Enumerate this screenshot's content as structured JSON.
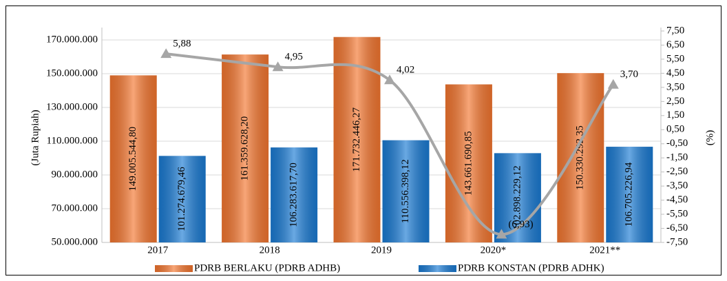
{
  "chart_data": {
    "type": "bar",
    "categories": [
      "2017",
      "2018",
      "2019",
      "2020*",
      "2021**"
    ],
    "ylabel": "(Juta Rupiah)",
    "y2label": "(%)",
    "ylim": [
      50000000,
      175300000
    ],
    "yticks": [
      {
        "value": 50000000,
        "label": "50.000.000"
      },
      {
        "value": 70000000,
        "label": "70.000.000"
      },
      {
        "value": 90000000,
        "label": "90.000.000"
      },
      {
        "value": 110000000,
        "label": "110.000.000"
      },
      {
        "value": 130000000,
        "label": "130.000.000"
      },
      {
        "value": 150000000,
        "label": "150.000.000"
      },
      {
        "value": 170000000,
        "label": "170.000.000"
      }
    ],
    "y2lim": [
      -7.5,
      7.5
    ],
    "y2ticks": [
      {
        "value": -7.5,
        "label": "-7,50"
      },
      {
        "value": -6.5,
        "label": "-6,50"
      },
      {
        "value": -5.5,
        "label": "-5,50"
      },
      {
        "value": -4.5,
        "label": "-4,50"
      },
      {
        "value": -3.5,
        "label": "-3,50"
      },
      {
        "value": -2.5,
        "label": "-2,50"
      },
      {
        "value": -1.5,
        "label": "-1,50"
      },
      {
        "value": -0.5,
        "label": "-0,50"
      },
      {
        "value": 0.5,
        "label": "0,50"
      },
      {
        "value": 1.5,
        "label": "1,50"
      },
      {
        "value": 2.5,
        "label": "2,50"
      },
      {
        "value": 3.5,
        "label": "3,50"
      },
      {
        "value": 4.5,
        "label": "4,50"
      },
      {
        "value": 5.5,
        "label": "5,50"
      },
      {
        "value": 6.5,
        "label": "6,50"
      },
      {
        "value": 7.5,
        "label": "7,50"
      }
    ],
    "grid": true,
    "series": [
      {
        "name": "PDRB BERLAKU (PDRB ADHB)",
        "color": "#f4762f",
        "type": "bar",
        "values": [
          149005544.8,
          161359628.2,
          171732446.27,
          143661690.85,
          150330292.35
        ],
        "value_labels": [
          "149.005.544,80",
          "161.359.628,20",
          "171.732.446,27",
          "143.661.690,85",
          "150.330.292,35"
        ]
      },
      {
        "name": "PDRB KONSTAN (PDRB ADHK)",
        "color": "#1a7bd4",
        "type": "bar",
        "values": [
          101274679.46,
          106283617.7,
          110556398.12,
          102898229.12,
          106705226.94
        ],
        "value_labels": [
          "101.274.679,46",
          "106.283.617,70",
          "110.556.398,12",
          "102.898.229,12",
          "106.705.226,94"
        ]
      },
      {
        "color": "#a6a6a6",
        "type": "line",
        "axis": "y2",
        "values": [
          5.88,
          4.95,
          4.02,
          -6.93,
          3.7
        ],
        "value_labels": [
          "5,88",
          "4,95",
          "4,02",
          "(6,93)",
          "3,70"
        ]
      }
    ]
  }
}
